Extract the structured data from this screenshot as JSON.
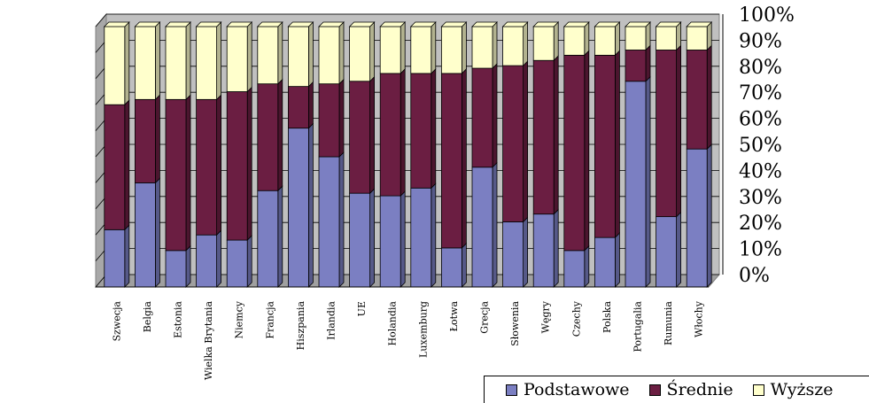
{
  "chart_data": {
    "type": "bar",
    "stacked": true,
    "percent": true,
    "categories": [
      "Szwecja",
      "Belgia",
      "Estonia",
      "Wielka Brytania",
      "Niemcy",
      "Francja",
      "Hiszpania",
      "Irlandia",
      "UE",
      "Holandia",
      "Luxemburg",
      "Łotwa",
      "Grecja",
      "Słowenia",
      "Węgry",
      "Czechy",
      "Polska",
      "Portugalia",
      "Rumunia",
      "Włochy"
    ],
    "series": [
      {
        "name": "Podstawowe",
        "color": "#7b7fc2",
        "values": [
          22,
          40,
          14,
          20,
          18,
          37,
          61,
          50,
          36,
          35,
          38,
          15,
          46,
          25,
          28,
          14,
          19,
          79,
          27,
          53
        ]
      },
      {
        "name": "Średnie",
        "color": "#6b1e42",
        "values": [
          48,
          32,
          58,
          52,
          57,
          41,
          16,
          28,
          43,
          47,
          44,
          67,
          38,
          60,
          59,
          75,
          70,
          12,
          64,
          38
        ]
      },
      {
        "name": "Wyższe",
        "color": "#ffffcc",
        "values": [
          30,
          28,
          28,
          28,
          25,
          22,
          23,
          22,
          21,
          18,
          18,
          18,
          16,
          15,
          13,
          11,
          11,
          9,
          9,
          9
        ]
      }
    ],
    "yticks": [
      "0%",
      "10%",
      "20%",
      "30%",
      "40%",
      "50%",
      "60%",
      "70%",
      "80%",
      "90%",
      "100%"
    ],
    "ylim": [
      0,
      100
    ],
    "grid": true,
    "legend": "bottom-right"
  }
}
